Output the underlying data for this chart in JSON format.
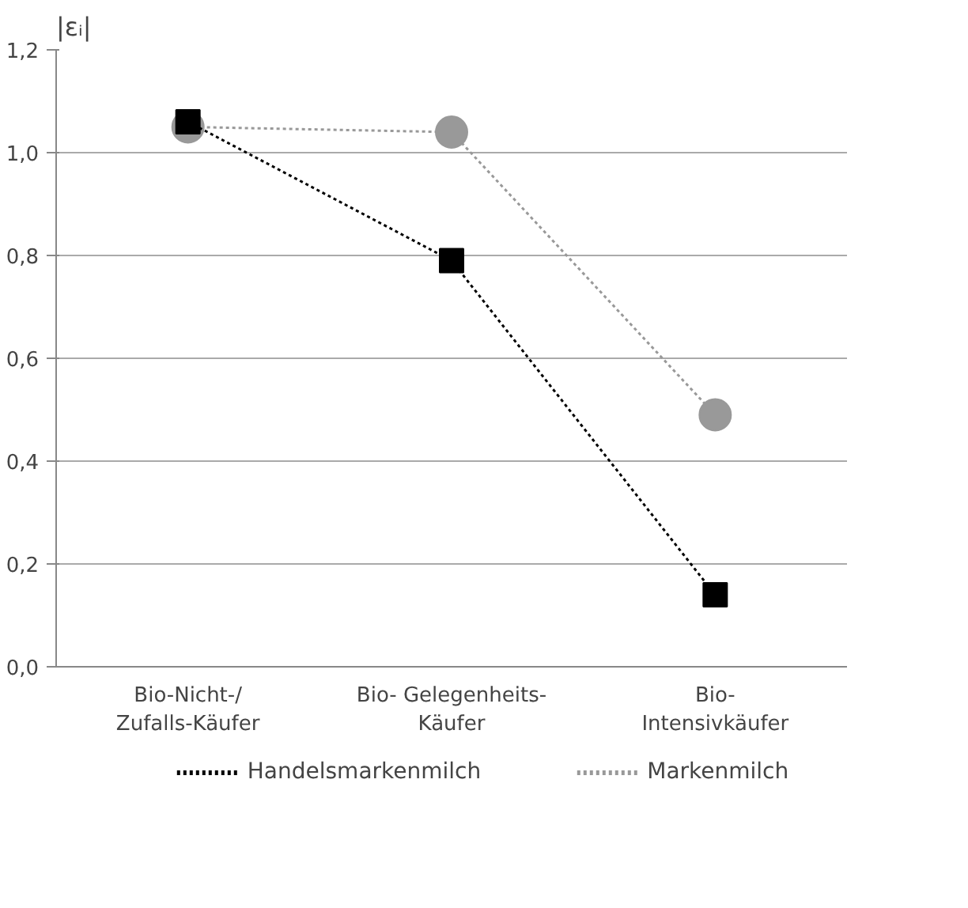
{
  "chart_data": {
    "type": "line",
    "ylabel": "|εᵢ|",
    "categories": [
      "Bio-Nicht-/\nZufalls-Käufer",
      "Bio- Gelegenheits-\nKäufer",
      "Bio-\nIntensivkäufer"
    ],
    "series": [
      {
        "name": "Markenmilch",
        "color": "#999999",
        "marker": "circle",
        "values": [
          1.05,
          1.04,
          0.49
        ]
      },
      {
        "name": "Handelsmarkenmilch",
        "color": "#000000",
        "marker": "square",
        "values": [
          1.06,
          0.79,
          0.14
        ]
      }
    ],
    "ylim": [
      0,
      1.2
    ],
    "yticks": [
      {
        "value": 0,
        "label": "0,0"
      },
      {
        "value": 0.2,
        "label": "0,2"
      },
      {
        "value": 0.4,
        "label": "0,4"
      },
      {
        "value": 0.6,
        "label": "0,6"
      },
      {
        "value": 0.8,
        "label": "0,8"
      },
      {
        "value": 1.0,
        "label": "1,0"
      },
      {
        "value": 1.2,
        "label": "1,2"
      }
    ],
    "grid": "y",
    "legend": "bottom",
    "line_style": "dotted"
  }
}
